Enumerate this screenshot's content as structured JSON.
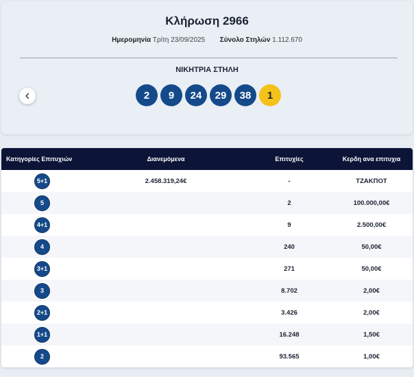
{
  "draw": {
    "title": "Κλήρωση 2966",
    "date_label": "Ημερομηνία",
    "date_value": "Τρίτη 23/09/2025",
    "columns_label": "Σύνολο Στηλών",
    "columns_value": "1.112.670",
    "winning_title": "ΝΙΚΗΤΡΙΑ ΣΤΗΛΗ",
    "numbers": [
      "2",
      "9",
      "24",
      "29",
      "38"
    ],
    "bonus": "1",
    "prev_icon": "chevron-left-icon"
  },
  "colors": {
    "ball": "#154a8a",
    "bonus_ball": "#f5c21a",
    "header": "#0c1537"
  },
  "table": {
    "headers": [
      "Κατηγορίες Επιτυχιών",
      "Διανεμόμενα",
      "Επιτυχίες",
      "Κερδη ανα επιτυχια"
    ],
    "rows": [
      {
        "category": "5+1",
        "distributed": "2.458.319,24€",
        "winners": "-",
        "prize": "ΤΖΑΚΠΟΤ"
      },
      {
        "category": "5",
        "distributed": "",
        "winners": "2",
        "prize": "100.000,00€"
      },
      {
        "category": "4+1",
        "distributed": "",
        "winners": "9",
        "prize": "2.500,00€"
      },
      {
        "category": "4",
        "distributed": "",
        "winners": "240",
        "prize": "50,00€"
      },
      {
        "category": "3+1",
        "distributed": "",
        "winners": "271",
        "prize": "50,00€"
      },
      {
        "category": "3",
        "distributed": "",
        "winners": "8.702",
        "prize": "2,00€"
      },
      {
        "category": "2+1",
        "distributed": "",
        "winners": "3.426",
        "prize": "2,00€"
      },
      {
        "category": "1+1",
        "distributed": "",
        "winners": "16.248",
        "prize": "1,50€"
      },
      {
        "category": "2",
        "distributed": "",
        "winners": "93.565",
        "prize": "1,00€"
      }
    ]
  }
}
